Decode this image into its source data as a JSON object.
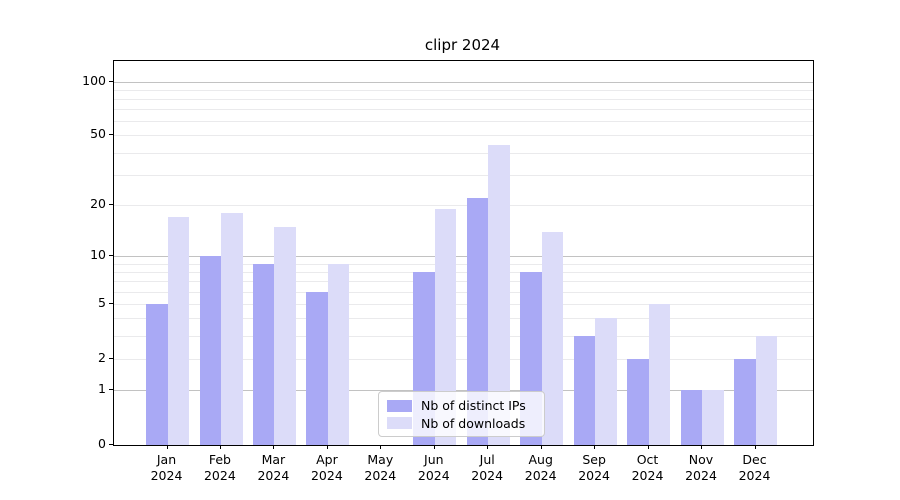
{
  "title": "clipr 2024",
  "legend": {
    "items": [
      {
        "label": "Nb of distinct IPs",
        "color": "#a9a9f5"
      },
      {
        "label": "Nb of downloads",
        "color": "#dcdcf9"
      }
    ]
  },
  "chart_data": {
    "type": "bar",
    "title": "clipr 2024",
    "categories": [
      "Jan",
      "Feb",
      "Mar",
      "Apr",
      "May",
      "Jun",
      "Jul",
      "Aug",
      "Sep",
      "Oct",
      "Nov",
      "Dec"
    ],
    "category_year": "2024",
    "series": [
      {
        "name": "Nb of distinct IPs",
        "color": "#a9a9f5",
        "values": [
          5,
          10,
          9,
          6,
          0,
          8,
          22,
          8,
          3,
          2,
          1,
          2
        ]
      },
      {
        "name": "Nb of downloads",
        "color": "#dcdcf9",
        "values": [
          17,
          18,
          15,
          9,
          0,
          19,
          44,
          14,
          4,
          5,
          1,
          3
        ]
      }
    ],
    "yscale": "log1p",
    "ylim": [
      0,
      130
    ],
    "yticks_labeled": [
      0,
      1,
      2,
      5,
      10,
      20,
      50,
      100
    ],
    "yticks_minor": [
      3,
      4,
      6,
      7,
      8,
      9,
      30,
      40,
      60,
      70,
      80,
      90
    ],
    "grid_major_at": [
      1,
      10,
      100
    ],
    "grid": true,
    "legend_position": "lower center",
    "colors": {
      "grid_major": "#c2c2c2",
      "grid_minor": "#eaeaec",
      "spine": "#000000",
      "background": "#ffffff"
    }
  }
}
